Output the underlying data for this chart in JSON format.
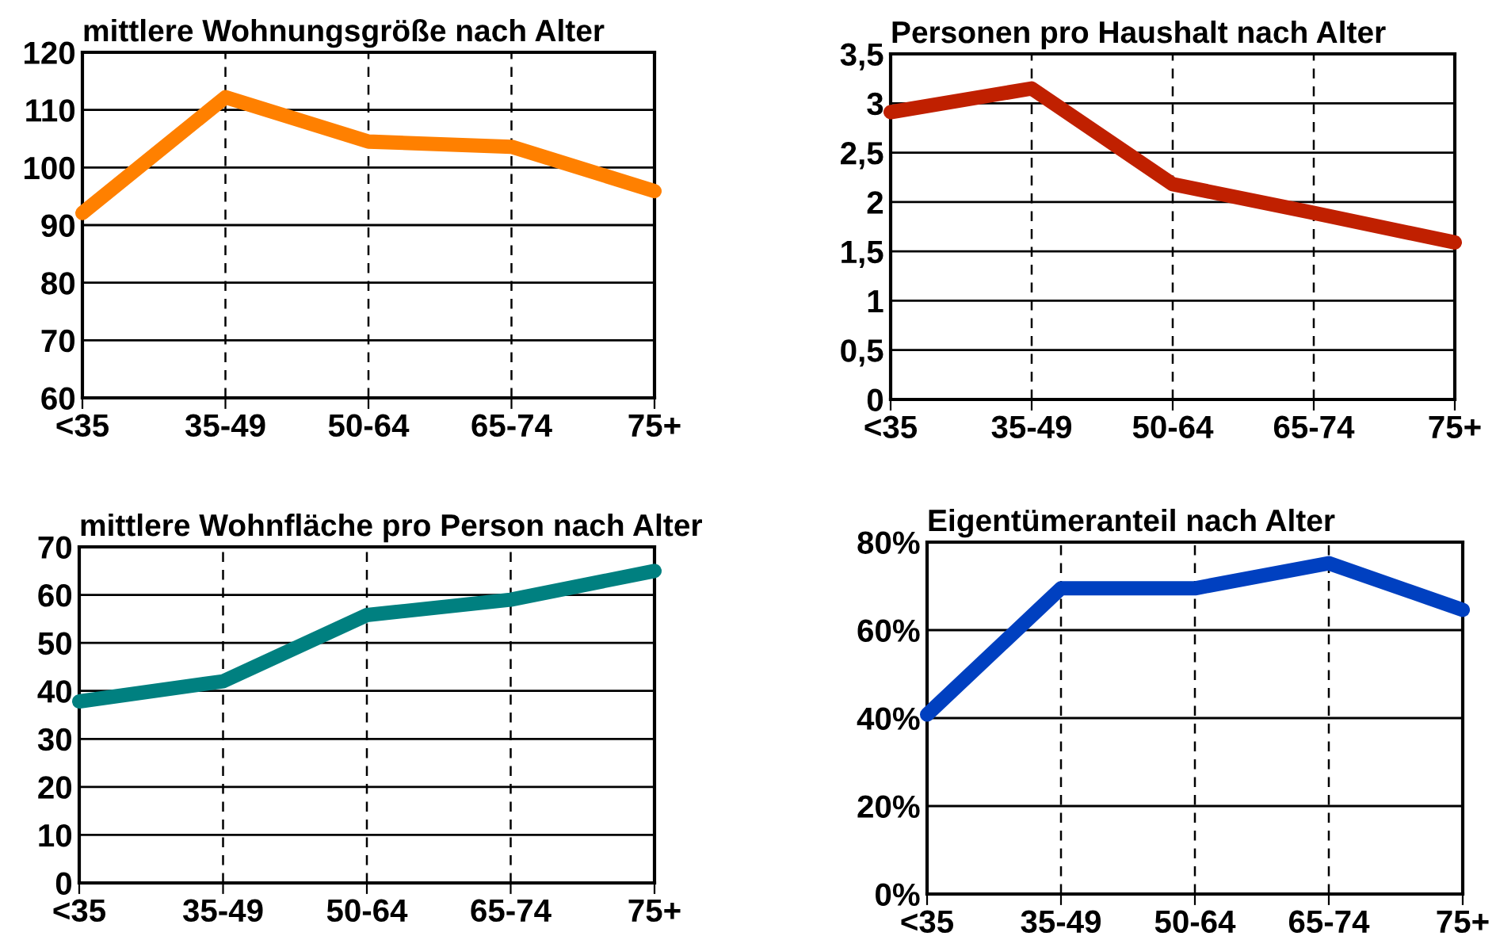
{
  "chart_data": [
    {
      "type": "line",
      "title": "mittlere Wohnungsgröße nach Alter",
      "categories": [
        "<35",
        "35-49",
        "50-64",
        "65-74",
        "75+"
      ],
      "series": [
        {
          "color": "#ff8000",
          "values": [
            92.1,
            112.2,
            104.5,
            103.6,
            95.9
          ]
        }
      ],
      "ylim": [
        60,
        120
      ],
      "yticks": [
        60,
        70,
        80,
        90,
        100,
        110,
        120
      ],
      "grid": true,
      "line_style": "solid"
    },
    {
      "type": "line",
      "title": "Personen pro Haushalt nach Alter",
      "categories": [
        "<35",
        "35-49",
        "50-64",
        "65-74",
        "75+"
      ],
      "series": [
        {
          "color": "#c02000",
          "values": [
            2.91,
            3.15,
            2.18,
            1.89,
            1.59
          ]
        }
      ],
      "ylim": [
        0,
        3.5
      ],
      "yticks": [
        0,
        {
          "value": 0.5,
          "label": "0,5"
        },
        1,
        {
          "value": 1.5,
          "label": "1,5"
        },
        2,
        {
          "value": 2.5,
          "label": "2,5"
        },
        3,
        {
          "value": 3.5,
          "label": "3,5"
        }
      ],
      "grid": true,
      "line_style": "solid"
    },
    {
      "type": "line",
      "title": "mittlere Wohnfläche pro Person nach Alter",
      "categories": [
        "<35",
        "35-49",
        "50-64",
        "65-74",
        "75+"
      ],
      "series": [
        {
          "color": "#008080",
          "values": [
            37.8,
            42,
            55.8,
            59,
            65
          ]
        }
      ],
      "ylim": [
        0,
        70
      ],
      "yticks": [
        0,
        10,
        20,
        30,
        40,
        50,
        60,
        70
      ],
      "grid": true,
      "line_style": "solid"
    },
    {
      "type": "line",
      "title": "Eigentümeranteil nach Alter",
      "categories": [
        "<35",
        "35-49",
        "50-64",
        "65-74",
        "75+"
      ],
      "series": [
        {
          "color": "#0040c0",
          "values": [
            40.8,
            69.5,
            69.5,
            75.2,
            64.6
          ]
        }
      ],
      "ylim": [
        0,
        80
      ],
      "yticks": [
        {
          "value": 0,
          "label": "0%"
        },
        {
          "value": 20,
          "label": "20%"
        },
        {
          "value": 40,
          "label": "40%"
        },
        {
          "value": 60,
          "label": "60%"
        },
        {
          "value": 80,
          "label": "80%"
        }
      ],
      "grid": true,
      "line_style": "solid"
    }
  ]
}
